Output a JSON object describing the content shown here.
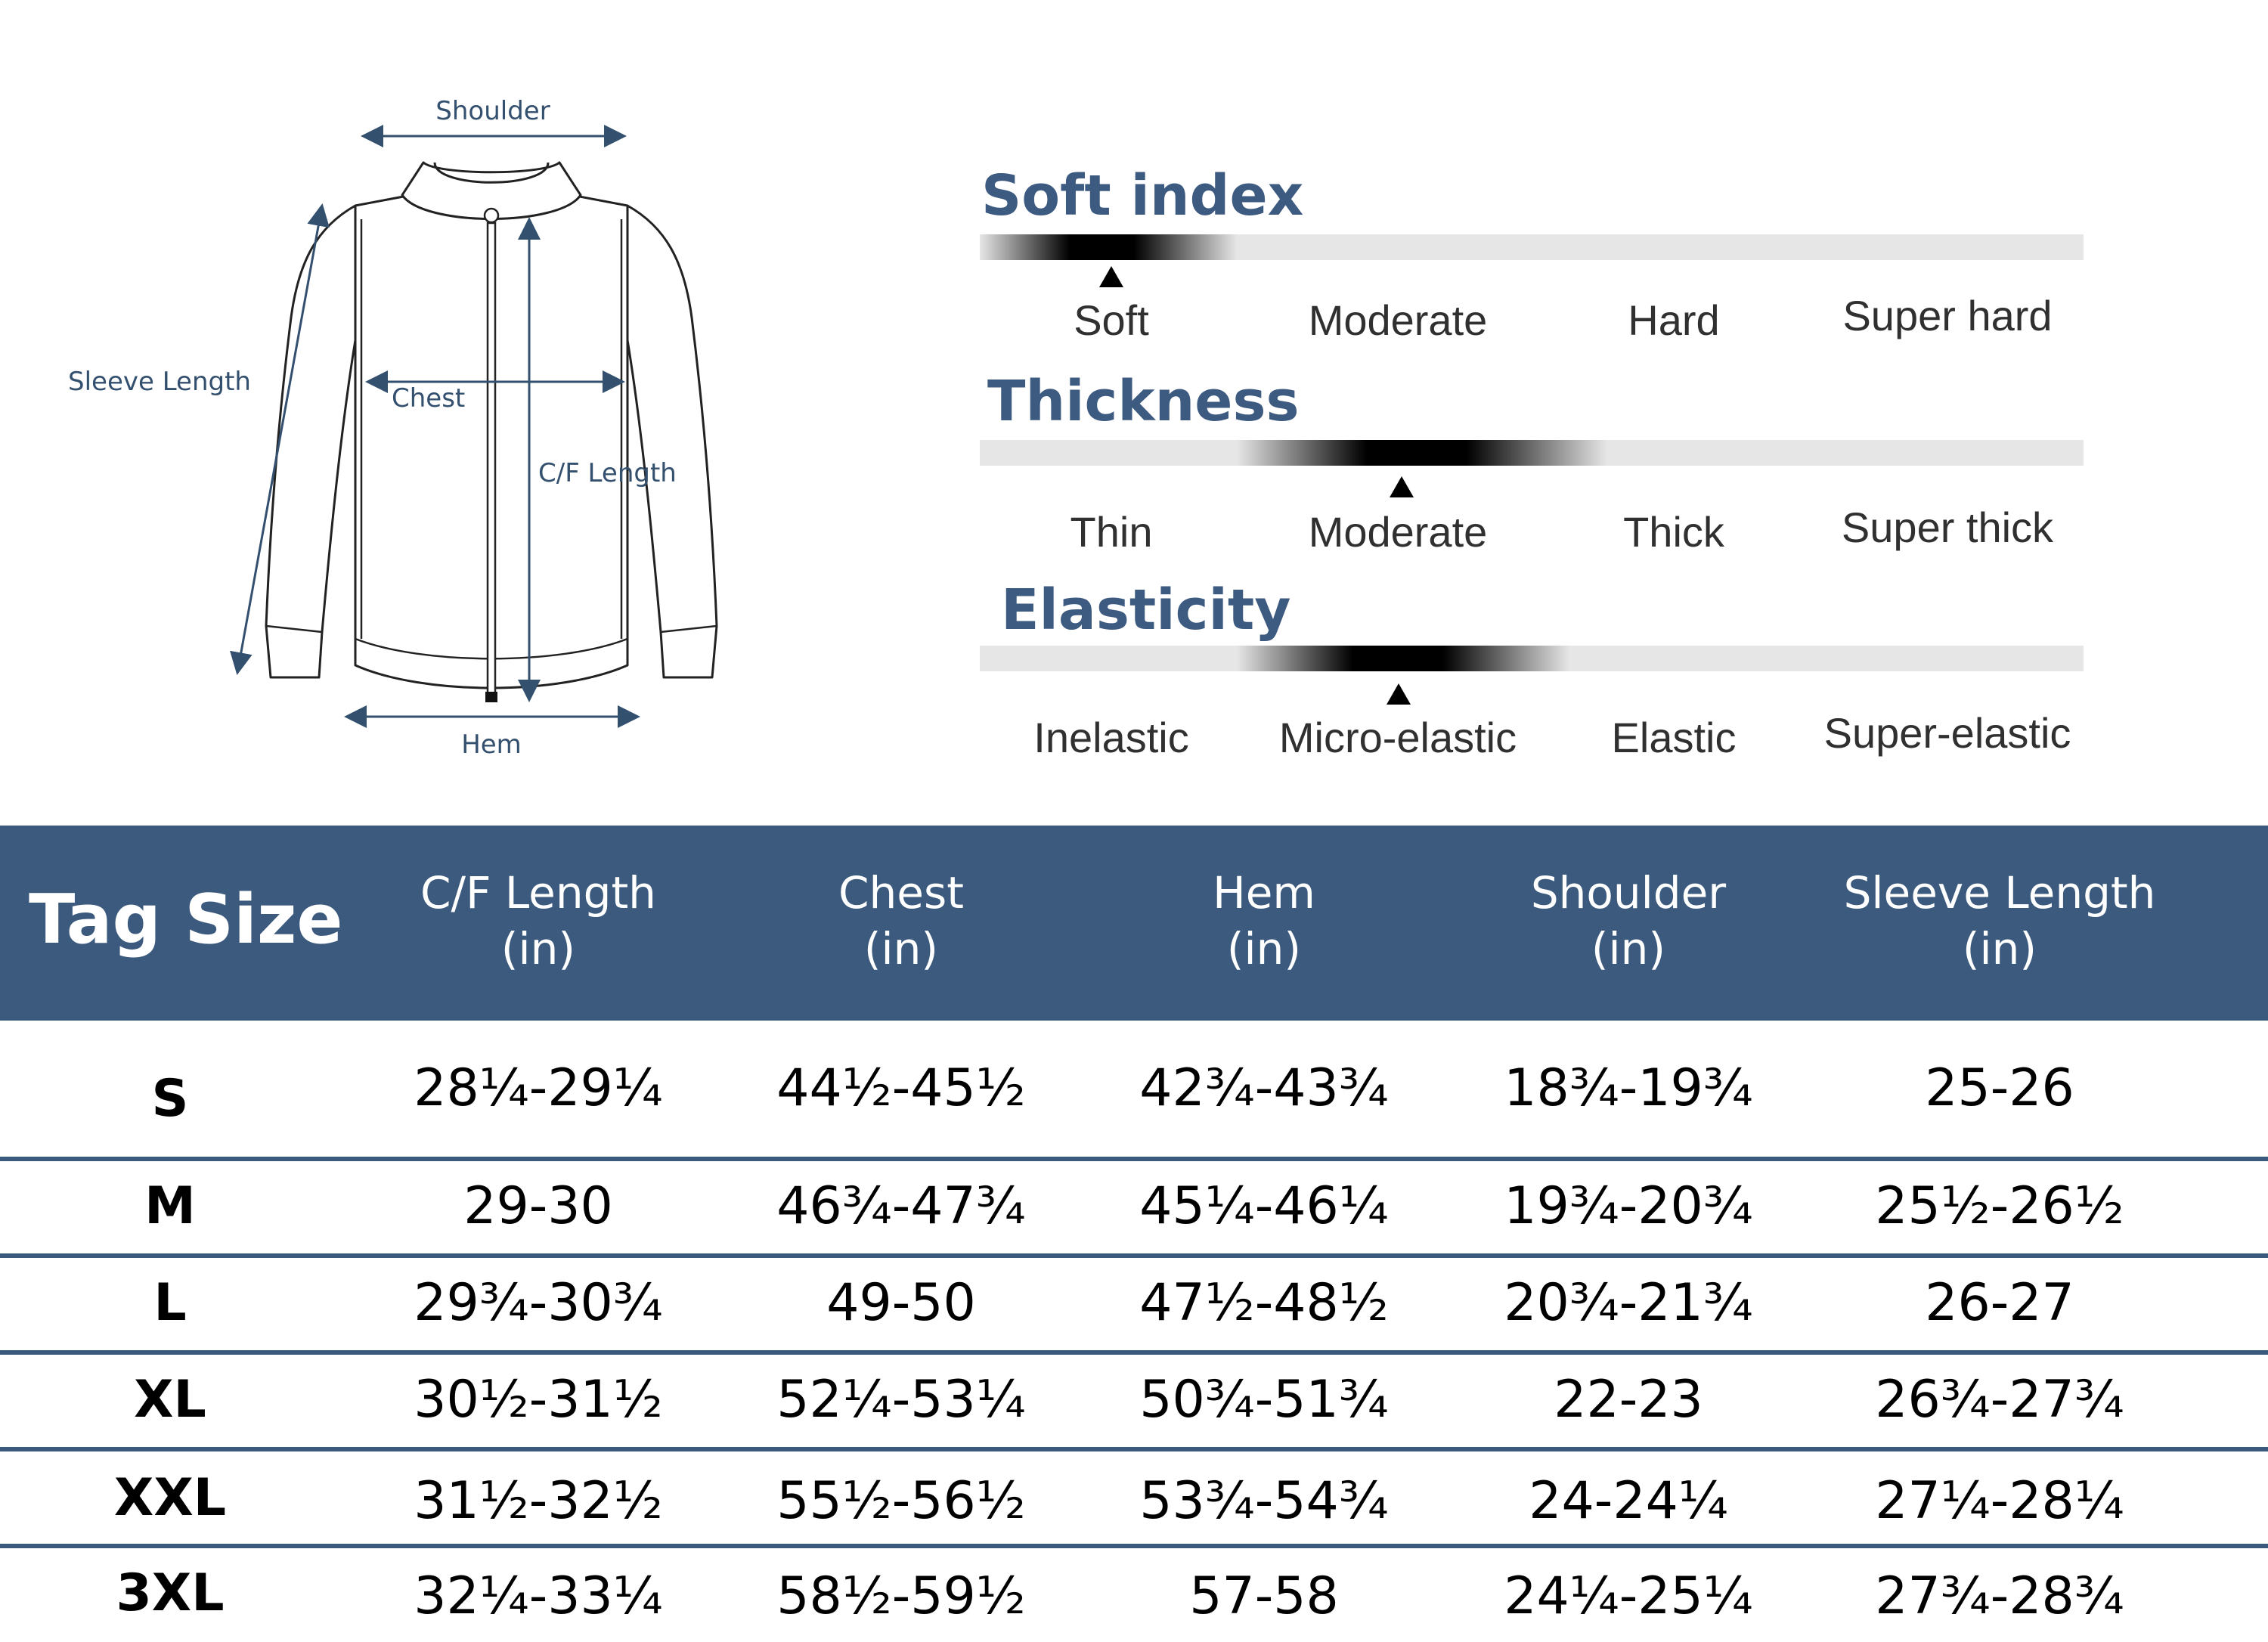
{
  "diagram": {
    "labels": {
      "shoulder": "Shoulder",
      "sleeve_length": "Sleeve Length",
      "chest": "Chest",
      "cf_length": "C/F Length",
      "hem": "Hem"
    }
  },
  "attributes": [
    {
      "title": "Soft index",
      "options": [
        "Soft",
        "Moderate",
        "Hard",
        "Super hard"
      ],
      "selected": "Soft"
    },
    {
      "title": "Thickness",
      "options": [
        "Thin",
        "Moderate",
        "Thick",
        "Super thick"
      ],
      "selected": "Moderate"
    },
    {
      "title": "Elasticity",
      "options": [
        "Inelastic",
        "Micro-elastic",
        "Elastic",
        "Super-elastic"
      ],
      "selected": "Micro-elastic"
    }
  ],
  "size_table": {
    "header": {
      "tag_size": "Tag Size",
      "columns": [
        {
          "name": "C/F Length",
          "unit": "(in)"
        },
        {
          "name": "Chest",
          "unit": "(in)"
        },
        {
          "name": "Hem",
          "unit": "(in)"
        },
        {
          "name": "Shoulder",
          "unit": "(in)"
        },
        {
          "name": "Sleeve Length",
          "unit": "(in)"
        }
      ]
    },
    "rows": [
      {
        "tag": "S",
        "values": [
          "28¼-29¼",
          "44½-45½",
          "42¾-43¾",
          "18¾-19¾",
          "25-26"
        ]
      },
      {
        "tag": "M",
        "values": [
          "29-30",
          "46¾-47¾",
          "45¼-46¼",
          "19¾-20¾",
          "25½-26½"
        ]
      },
      {
        "tag": "L",
        "values": [
          "29¾-30¾",
          "49-50",
          "47½-48½",
          "20¾-21¾",
          "26-27"
        ]
      },
      {
        "tag": "XL",
        "values": [
          "30½-31½",
          "52¼-53¼",
          "50¾-51¾",
          "22-23",
          "26¾-27¾"
        ]
      },
      {
        "tag": "XXL",
        "values": [
          "31½-32½",
          "55½-56½",
          "53¾-54¾",
          "24-24¼",
          "27¼-28¼"
        ]
      },
      {
        "tag": "3XL",
        "values": [
          "32¼-33¼",
          "58½-59½",
          "57-58",
          "24¼-25¼",
          "27¾-28¾"
        ]
      }
    ]
  }
}
